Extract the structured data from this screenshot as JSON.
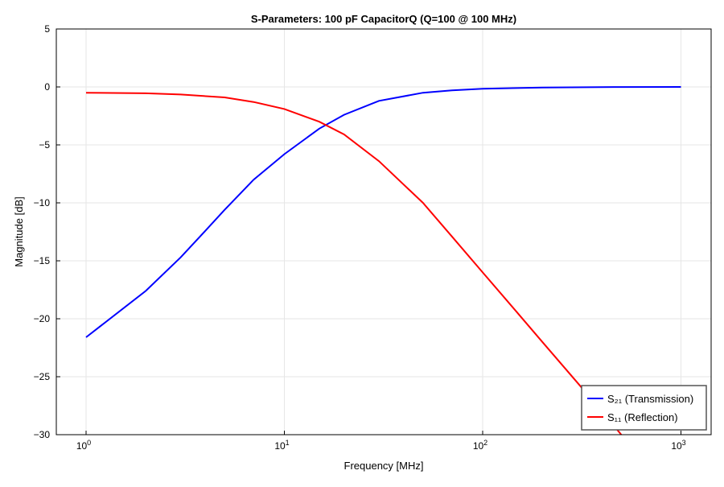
{
  "chart_data": {
    "type": "line",
    "title": "S-Parameters: 100 pF CapacitorQ (Q=100 @ 100 MHz)",
    "xlabel": "Frequency [MHz]",
    "ylabel": "Magnitude [dB]",
    "xscale": "log",
    "xlim": [
      0.7,
      1400
    ],
    "ylim": [
      -30,
      5
    ],
    "xticks": [
      1,
      10,
      100,
      1000
    ],
    "xtick_labels": [
      [
        "10",
        "0"
      ],
      [
        "10",
        "1"
      ],
      [
        "10",
        "2"
      ],
      [
        "10",
        "3"
      ]
    ],
    "yticks": [
      5,
      0,
      -5,
      -10,
      -15,
      -20,
      -25,
      -30
    ],
    "ytick_labels": [
      "5",
      "0",
      "−5",
      "−10",
      "−15",
      "−20",
      "−25",
      "−30"
    ],
    "grid": true,
    "legend_position": "bottom-right",
    "series": [
      {
        "name": "S₂₁ (Transmission)",
        "color": "#0000ff",
        "x": [
          1,
          2,
          3,
          4,
          5,
          7,
          10,
          15,
          20,
          30,
          50,
          70,
          100,
          200,
          500,
          1000
        ],
        "y": [
          -21.6,
          -17.6,
          -14.7,
          -12.4,
          -10.6,
          -8.0,
          -5.8,
          -3.6,
          -2.4,
          -1.2,
          -0.5,
          -0.3,
          -0.15,
          -0.05,
          -0.01,
          0.0
        ]
      },
      {
        "name": "S₁₁ (Reflection)",
        "color": "#ff0000",
        "x": [
          1,
          2,
          3,
          5,
          7,
          10,
          15,
          20,
          30,
          50,
          70,
          100,
          150,
          200,
          300,
          400,
          500
        ],
        "y": [
          -0.5,
          -0.55,
          -0.65,
          -0.9,
          -1.3,
          -1.9,
          -3.0,
          -4.1,
          -6.4,
          -10.0,
          -12.9,
          -16.0,
          -19.5,
          -22.0,
          -25.5,
          -28.0,
          -30.0
        ]
      }
    ]
  }
}
